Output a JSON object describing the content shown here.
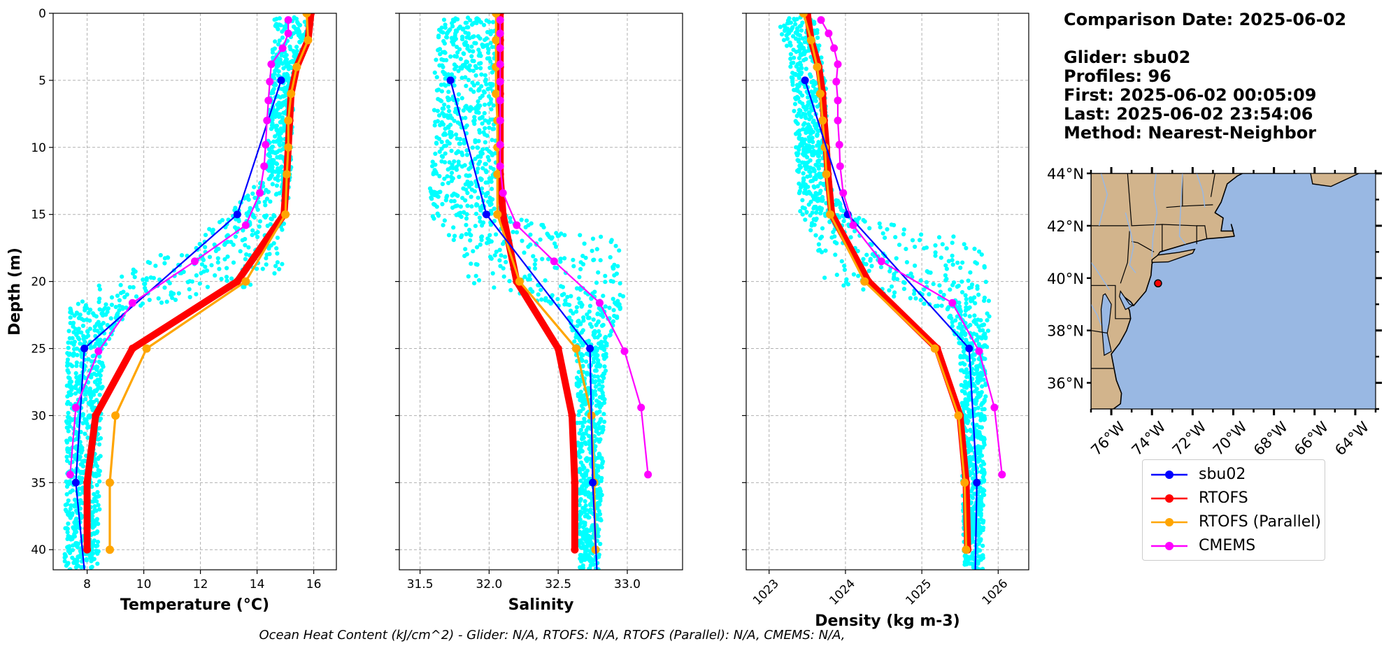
{
  "info": {
    "comparison_date": "Comparison Date: 2025-06-02",
    "glider": "Glider: sbu02",
    "profiles": "Profiles: 96",
    "first": "First: 2025-06-02 00:05:09",
    "last": "Last: 2025-06-02 23:54:06",
    "method": "Method: Nearest-Neighbor"
  },
  "footer": "Ocean Heat Content (kJ/cm^2) - Glider: N/A,  RTOFS: N/A,  RTOFS (Parallel): N/A,  CMEMS: N/A,",
  "colors": {
    "sbu02": "#0000ff",
    "RTOFS": "#ff0000",
    "RTOFS (Parallel)": "#ffa500",
    "CMEMS": "#ff00ff",
    "scatter": "#00ffff",
    "land": "#d2b48c",
    "ocean": "#99b8e3"
  },
  "legend": [
    {
      "name": "sbu02",
      "color": "#0000ff"
    },
    {
      "name": "RTOFS",
      "color": "#ff0000"
    },
    {
      "name": "RTOFS (Parallel)",
      "color": "#ffa500"
    },
    {
      "name": "CMEMS",
      "color": "#ff00ff"
    }
  ],
  "chart_data": [
    {
      "type": "line",
      "xlabel": "Temperature (°C)",
      "ylabel": "Depth (m)",
      "xlim": [
        6.8,
        16.8
      ],
      "ylim": [
        41.5,
        0
      ],
      "xticks": [
        8,
        10,
        12,
        14,
        16
      ],
      "yticks": [
        0,
        5,
        10,
        15,
        20,
        25,
        30,
        35,
        40
      ],
      "grid": true,
      "scatter_cloud": {
        "color": "#00ffff",
        "description": "glider observations",
        "x_range": [
          7.2,
          16.2
        ]
      },
      "series": [
        {
          "name": "sbu02",
          "depth": [
            5,
            15,
            25,
            35,
            41.5
          ],
          "values": [
            14.85,
            13.3,
            7.9,
            7.6,
            7.9
          ]
        },
        {
          "name": "RTOFS",
          "depth": [
            0,
            2,
            4,
            6,
            8,
            10,
            12,
            15,
            20,
            25,
            30,
            35,
            40
          ],
          "values": [
            15.9,
            15.8,
            15.4,
            15.2,
            15.15,
            15.1,
            15.05,
            14.95,
            13.3,
            9.6,
            8.3,
            8.0,
            8.0
          ]
        },
        {
          "name": "RTOFS (Parallel)",
          "depth": [
            0,
            2,
            4,
            6,
            8,
            10,
            12,
            15,
            20,
            25,
            30,
            35,
            40
          ],
          "values": [
            15.75,
            15.8,
            15.4,
            15.2,
            15.1,
            15.1,
            15.05,
            15.0,
            13.6,
            10.1,
            9.0,
            8.8,
            8.8
          ]
        },
        {
          "name": "CMEMS",
          "depth": [
            0.5,
            1.5,
            2.6,
            3.8,
            5.1,
            6.5,
            8.0,
            9.8,
            11.4,
            13.4,
            15.8,
            18.5,
            21.6,
            25.2,
            29.4,
            34.4
          ],
          "values": [
            15.1,
            15.1,
            14.9,
            14.5,
            14.45,
            14.4,
            14.35,
            14.3,
            14.25,
            14.1,
            13.6,
            11.8,
            9.6,
            8.4,
            7.6,
            7.4
          ]
        }
      ]
    },
    {
      "type": "line",
      "xlabel": "Salinity",
      "ylabel": "",
      "xlim": [
        31.35,
        33.4
      ],
      "ylim": [
        41.5,
        0
      ],
      "xticks": [
        31.5,
        32.0,
        32.5,
        33.0
      ],
      "yticks": [
        0,
        5,
        10,
        15,
        20,
        25,
        30,
        35,
        40
      ],
      "grid": true,
      "scatter_cloud": {
        "color": "#00ffff",
        "description": "glider observations",
        "x_range": [
          31.55,
          33.05
        ]
      },
      "series": [
        {
          "name": "sbu02",
          "depth": [
            5,
            15,
            25,
            35,
            41.5
          ],
          "values": [
            31.72,
            31.98,
            32.73,
            32.75,
            32.78
          ]
        },
        {
          "name": "RTOFS",
          "depth": [
            0,
            2,
            4,
            6,
            8,
            10,
            12,
            15,
            20,
            25,
            30,
            35,
            40
          ],
          "values": [
            32.08,
            32.08,
            32.08,
            32.08,
            32.08,
            32.08,
            32.08,
            32.1,
            32.2,
            32.5,
            32.6,
            32.62,
            32.62
          ]
        },
        {
          "name": "RTOFS (Parallel)",
          "depth": [
            0,
            2,
            4,
            6,
            8,
            10,
            12,
            15,
            20,
            25,
            30,
            35,
            40
          ],
          "values": [
            32.05,
            32.05,
            32.05,
            32.05,
            32.06,
            32.06,
            32.06,
            32.06,
            32.22,
            32.63,
            32.74,
            32.76,
            32.77
          ]
        },
        {
          "name": "CMEMS",
          "depth": [
            0.5,
            1.5,
            2.6,
            3.8,
            5.1,
            6.5,
            8.0,
            9.8,
            11.4,
            13.4,
            15.8,
            18.5,
            21.6,
            25.2,
            29.4,
            34.4
          ],
          "values": [
            32.08,
            32.08,
            32.08,
            32.08,
            32.08,
            32.08,
            32.08,
            32.08,
            32.08,
            32.1,
            32.2,
            32.47,
            32.8,
            32.98,
            33.1,
            33.15
          ]
        }
      ]
    },
    {
      "type": "line",
      "xlabel": "Density (kg m-3)",
      "ylabel": "",
      "xlim": [
        1022.7,
        1026.4
      ],
      "ylim": [
        41.5,
        0
      ],
      "xticks": [
        1023,
        1024,
        1025,
        1026
      ],
      "yticks": [
        0,
        5,
        10,
        15,
        20,
        25,
        30,
        35,
        40
      ],
      "grid": true,
      "scatter_cloud": {
        "color": "#00ffff",
        "description": "glider observations",
        "x_range": [
          1023.1,
          1025.95
        ]
      },
      "series": [
        {
          "name": "sbu02",
          "depth": [
            5,
            15,
            25,
            35,
            41.5
          ],
          "values": [
            1023.47,
            1024.03,
            1025.62,
            1025.72,
            1025.7
          ]
        },
        {
          "name": "RTOFS",
          "depth": [
            0,
            2,
            4,
            6,
            8,
            10,
            12,
            15,
            20,
            25,
            30,
            35,
            40
          ],
          "values": [
            1023.5,
            1023.55,
            1023.65,
            1023.7,
            1023.72,
            1023.75,
            1023.77,
            1023.82,
            1024.3,
            1025.2,
            1025.5,
            1025.58,
            1025.6
          ]
        },
        {
          "name": "RTOFS (Parallel)",
          "depth": [
            0,
            2,
            4,
            6,
            8,
            10,
            12,
            15,
            20,
            25,
            30,
            35,
            40
          ],
          "values": [
            1023.45,
            1023.55,
            1023.63,
            1023.67,
            1023.7,
            1023.73,
            1023.75,
            1023.8,
            1024.25,
            1025.17,
            1025.48,
            1025.56,
            1025.58
          ]
        },
        {
          "name": "CMEMS",
          "depth": [
            0.5,
            1.5,
            2.6,
            3.8,
            5.1,
            6.5,
            8.0,
            9.8,
            11.4,
            13.4,
            15.8,
            18.5,
            21.6,
            25.2,
            29.4,
            34.4
          ],
          "values": [
            1023.68,
            1023.78,
            1023.85,
            1023.9,
            1023.88,
            1023.9,
            1023.9,
            1023.92,
            1023.93,
            1023.97,
            1024.1,
            1024.47,
            1025.4,
            1025.75,
            1025.95,
            1026.05
          ]
        }
      ]
    },
    {
      "type": "map",
      "description": "glider location map",
      "lat_range": [
        35,
        44
      ],
      "lon_range": [
        -77,
        -63
      ],
      "lat_ticks": [
        "36°N",
        "38°N",
        "40°N",
        "42°N",
        "44°N"
      ],
      "lon_ticks": [
        "76°W",
        "74°W",
        "72°W",
        "70°W",
        "68°W",
        "66°W",
        "64°W"
      ],
      "glider_position": {
        "lat": 39.8,
        "lon": -73.7
      }
    }
  ]
}
